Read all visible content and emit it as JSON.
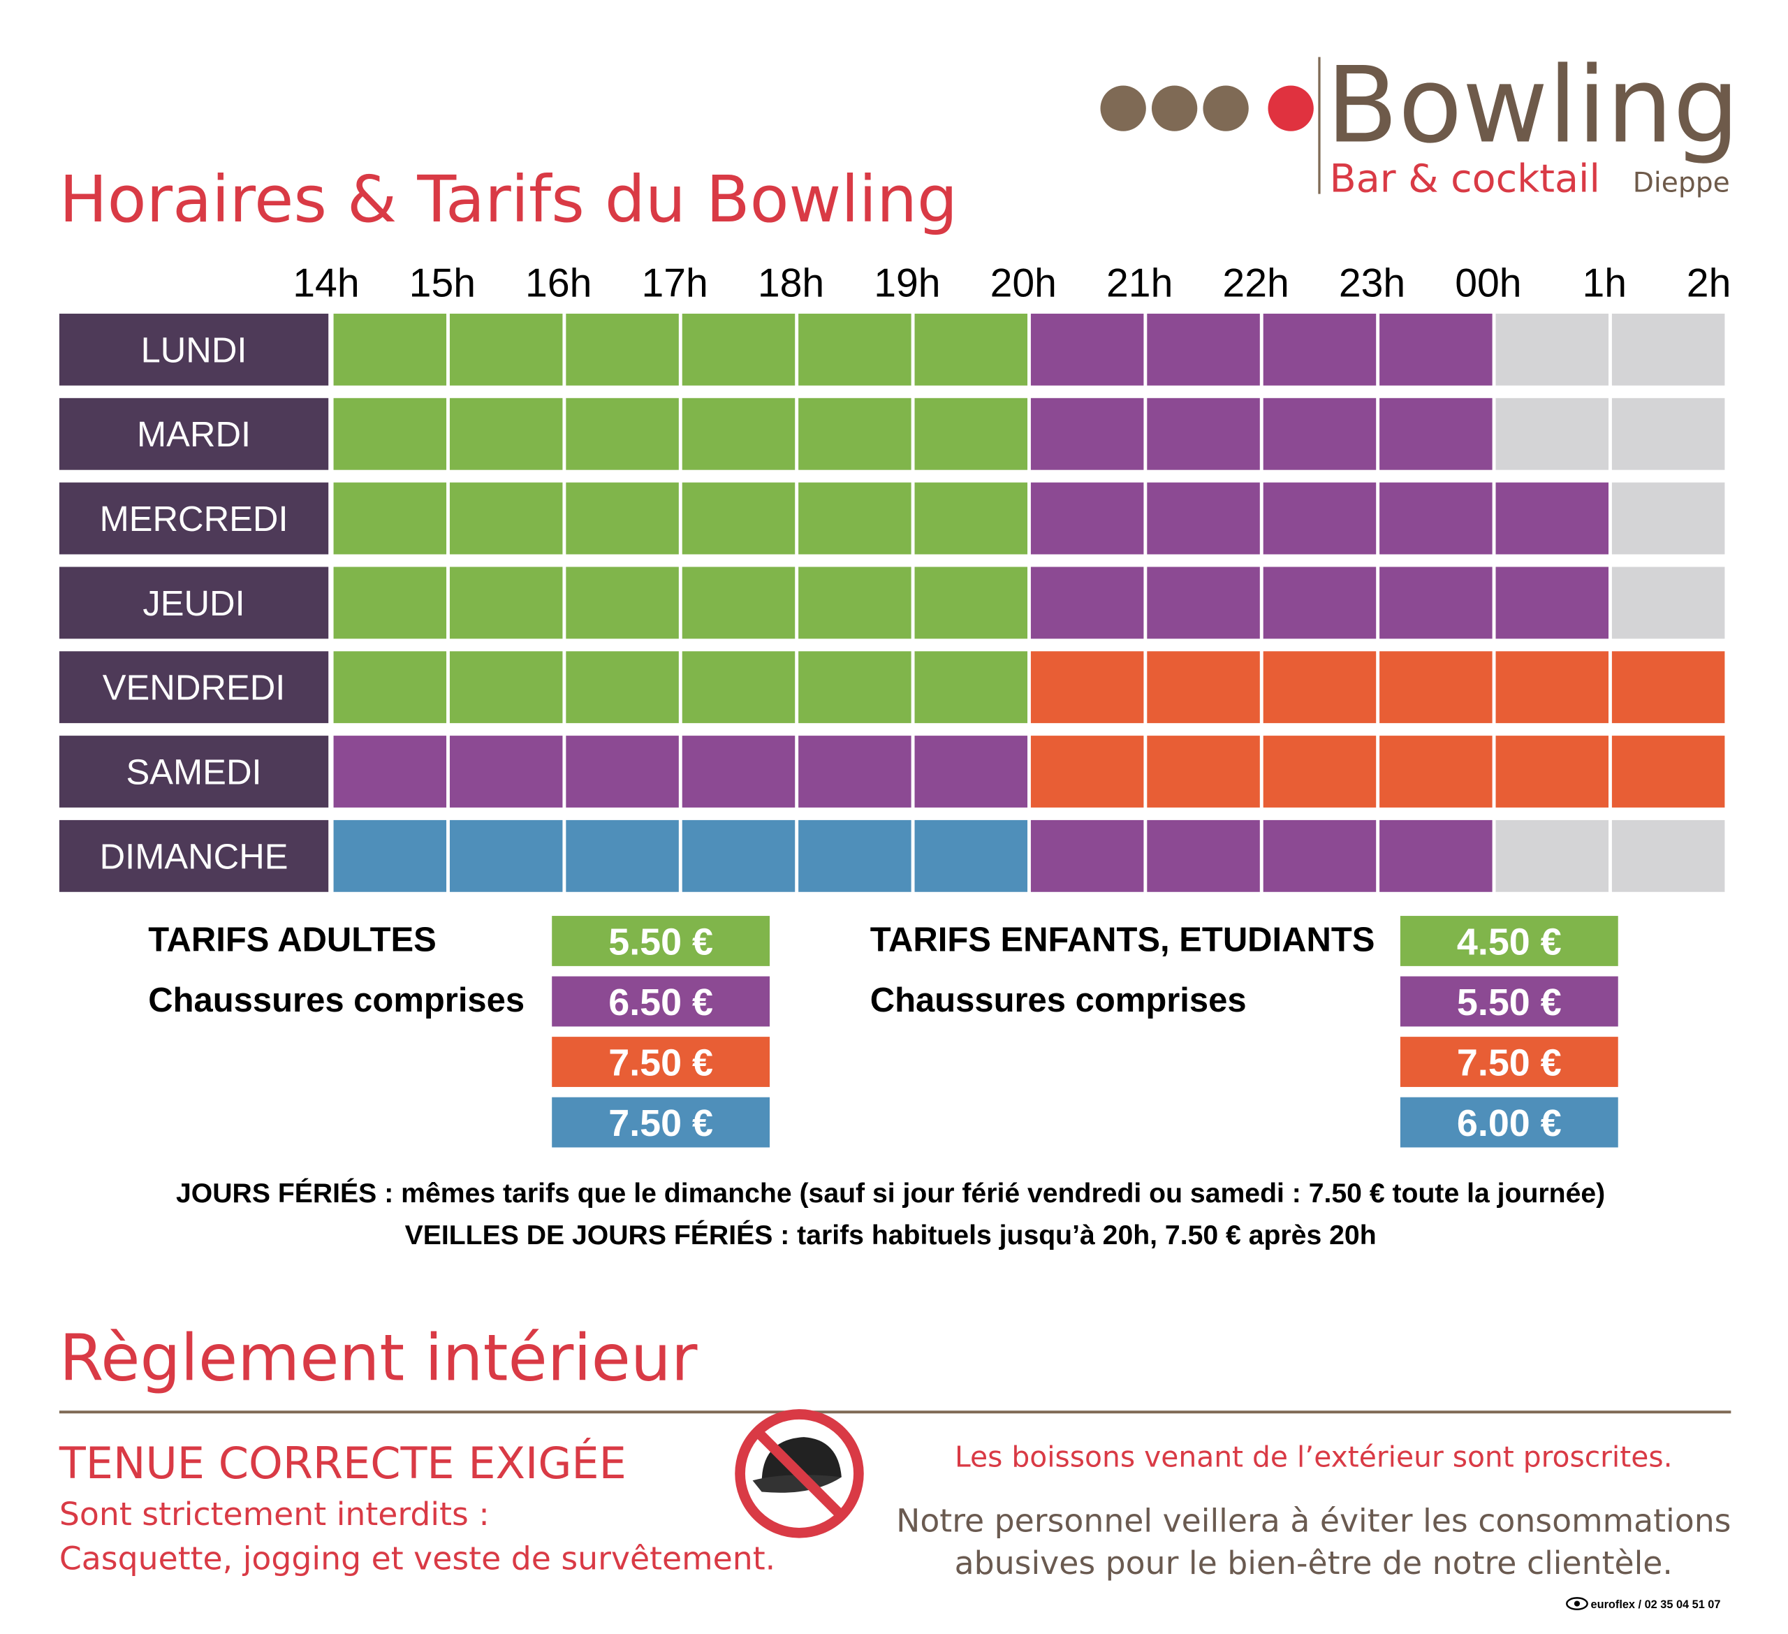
{
  "header": {
    "title": "Horaires & Tarifs du Bowling",
    "logo": {
      "name": "Bowling",
      "subtitle": "Bar & cocktail",
      "city": "Dieppe"
    }
  },
  "schedule": {
    "hours": [
      "14h",
      "15h",
      "16h",
      "17h",
      "18h",
      "19h",
      "20h",
      "21h",
      "22h",
      "23h",
      "00h",
      "1h",
      "2h"
    ],
    "days": [
      {
        "label": "LUNDI",
        "cells": [
          "#80b54b",
          "#80b54b",
          "#80b54b",
          "#80b54b",
          "#80b54b",
          "#80b54b",
          "#8c4a93",
          "#8c4a93",
          "#8c4a93",
          "#8c4a93",
          "#d4d4d6",
          "#d4d4d6"
        ]
      },
      {
        "label": "MARDI",
        "cells": [
          "#80b54b",
          "#80b54b",
          "#80b54b",
          "#80b54b",
          "#80b54b",
          "#80b54b",
          "#8c4a93",
          "#8c4a93",
          "#8c4a93",
          "#8c4a93",
          "#d4d4d6",
          "#d4d4d6"
        ]
      },
      {
        "label": "MERCREDI",
        "cells": [
          "#80b54b",
          "#80b54b",
          "#80b54b",
          "#80b54b",
          "#80b54b",
          "#80b54b",
          "#8c4a93",
          "#8c4a93",
          "#8c4a93",
          "#8c4a93",
          "#8c4a93",
          "#d4d4d6"
        ]
      },
      {
        "label": "JEUDI",
        "cells": [
          "#80b54b",
          "#80b54b",
          "#80b54b",
          "#80b54b",
          "#80b54b",
          "#80b54b",
          "#8c4a93",
          "#8c4a93",
          "#8c4a93",
          "#8c4a93",
          "#8c4a93",
          "#d4d4d6"
        ]
      },
      {
        "label": "VENDREDI",
        "cells": [
          "#80b54b",
          "#80b54b",
          "#80b54b",
          "#80b54b",
          "#80b54b",
          "#80b54b",
          "#e85e35",
          "#e85e35",
          "#e85e35",
          "#e85e35",
          "#e85e35",
          "#e85e35"
        ]
      },
      {
        "label": "SAMEDI",
        "cells": [
          "#8c4a93",
          "#8c4a93",
          "#8c4a93",
          "#8c4a93",
          "#8c4a93",
          "#8c4a93",
          "#e85e35",
          "#e85e35",
          "#e85e35",
          "#e85e35",
          "#e85e35",
          "#e85e35"
        ]
      },
      {
        "label": "DIMANCHE",
        "cells": [
          "#4f8fba",
          "#4f8fba",
          "#4f8fba",
          "#4f8fba",
          "#4f8fba",
          "#4f8fba",
          "#8c4a93",
          "#8c4a93",
          "#8c4a93",
          "#8c4a93",
          "#d4d4d6",
          "#d4d4d6"
        ]
      }
    ]
  },
  "tariffs": [
    {
      "title": "TARIFS ADULTES",
      "subtitle": "Chaussures comprises",
      "prices": [
        {
          "label": "5.50 €",
          "color": "#80b54b"
        },
        {
          "label": "6.50 €",
          "color": "#8c4a93"
        },
        {
          "label": "7.50 €",
          "color": "#e85e35"
        },
        {
          "label": "7.50 €",
          "color": "#4f8fba"
        }
      ]
    },
    {
      "title": "TARIFS ENFANTS, ETUDIANTS",
      "subtitle": "Chaussures comprises",
      "prices": [
        {
          "label": "4.50 €",
          "color": "#80b54b"
        },
        {
          "label": "5.50 €",
          "color": "#8c4a93"
        },
        {
          "label": "7.50 €",
          "color": "#e85e35"
        },
        {
          "label": "6.00 €",
          "color": "#4f8fba"
        }
      ]
    }
  ],
  "notes": [
    "JOURS FÉRIÉS : mêmes tarifs que le dimanche (sauf si jour férié vendredi ou samedi : 7.50 € toute la journée)",
    "VEILLES DE JOURS FÉRIÉS : tarifs habituels jusqu’à 20h, 7.50 € après 20h"
  ],
  "rules": {
    "title": "Règlement intérieur",
    "dress": {
      "title": "TENUE CORRECTE EXIGÉE",
      "lines": [
        "Sont strictement interdits :",
        "Casquette, jogging et veste de survêtement."
      ]
    },
    "drinks": "Les boissons venant de l’extérieur sont proscrites.",
    "staff": [
      "Notre personnel veillera à éviter les consommations",
      "abusives pour le bien-être de notre clientèle."
    ]
  },
  "footer": "euroflex / 02 35 04 51 07"
}
